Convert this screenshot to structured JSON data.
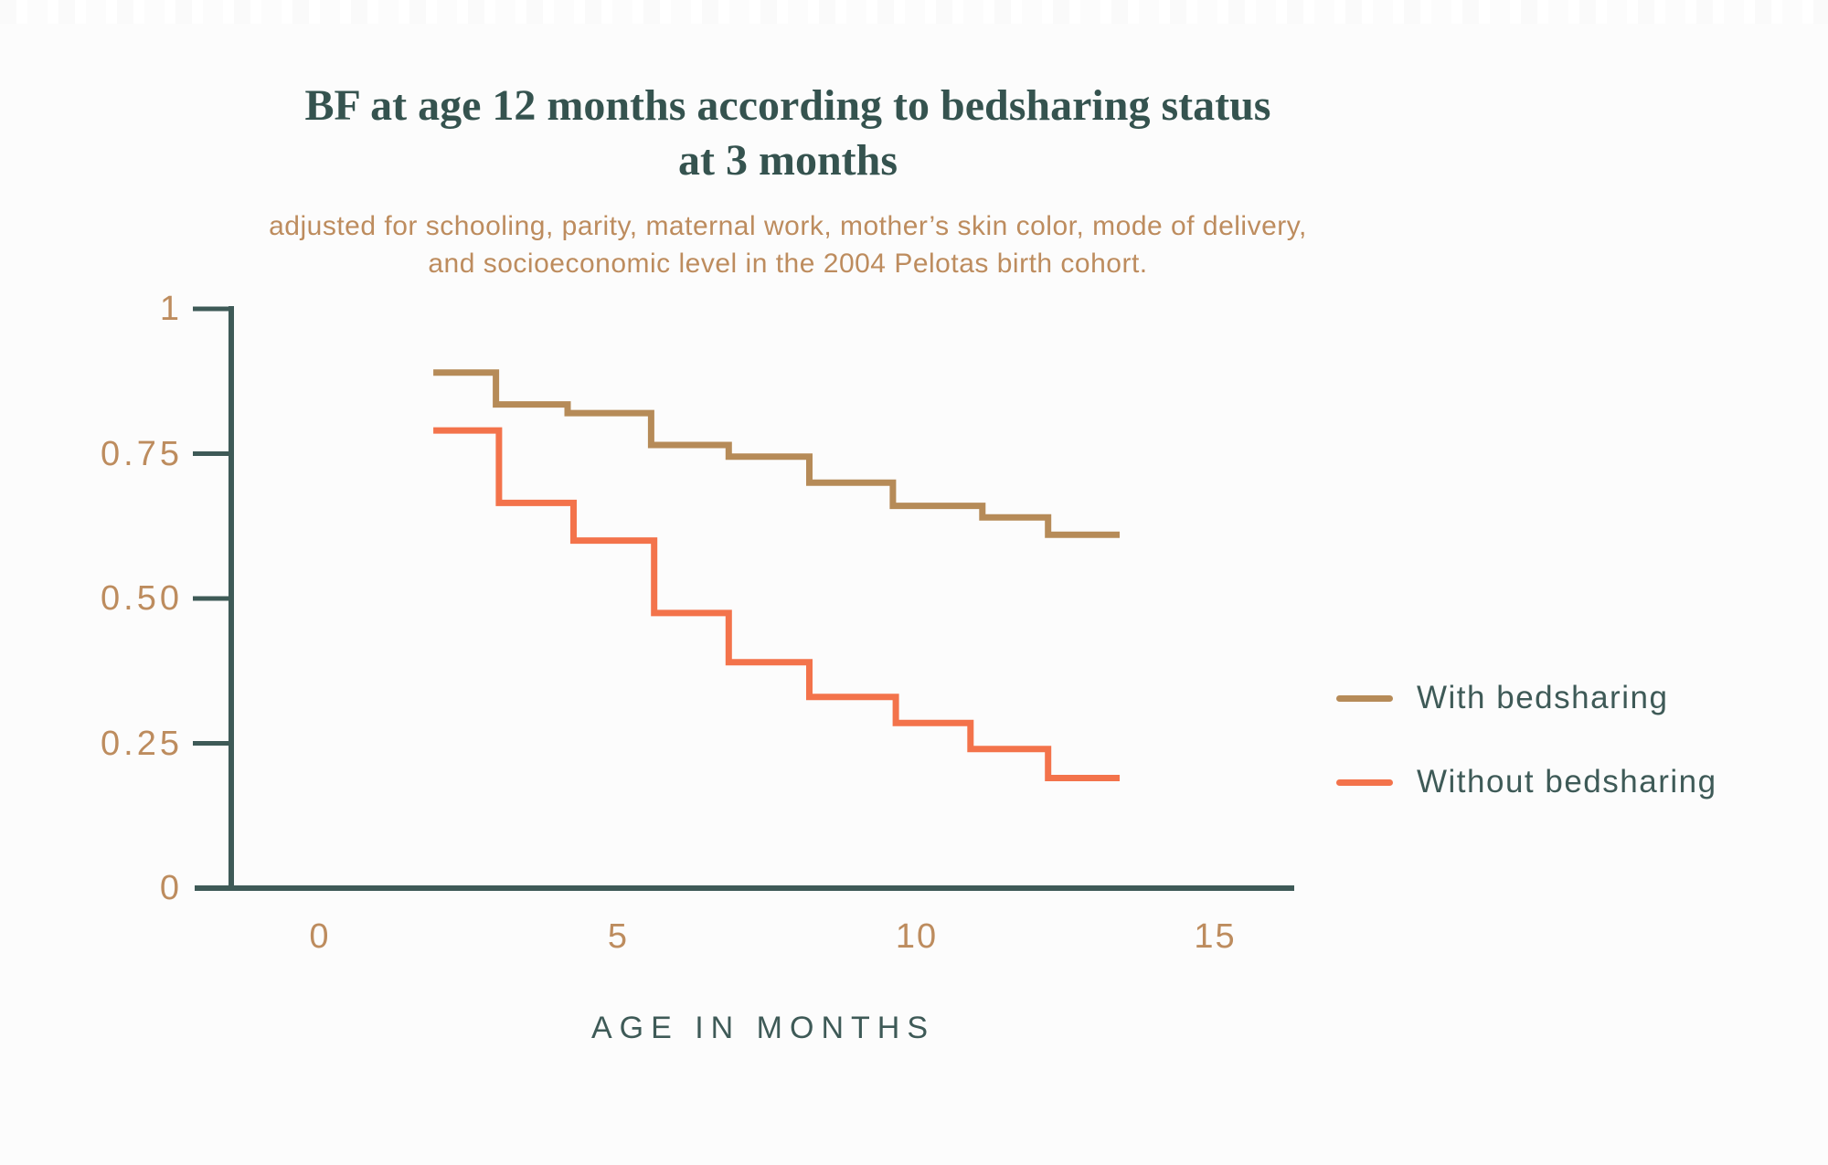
{
  "header": {
    "title": "BF at age 12 months according to bedsharing status at 3 months",
    "subtitle": "adjusted for schooling, parity, maternal work, mother’s skin color, mode of delivery, and socioeconomic level in the 2004 Pelotas birth cohort."
  },
  "colors": {
    "bg": "#fcfcfc",
    "teal": "#3e5a57",
    "teal_dark": "#35534f",
    "tan": "#bd8c5e",
    "axis": "#3e5a57"
  },
  "chart_data": {
    "type": "line",
    "subtype": "step-survival-curve",
    "title": "BF at age 12 months according to bedsharing status at 3 months",
    "subtitle": "adjusted for schooling, parity, maternal work, mother’s skin color, mode of delivery, and socioeconomic level in the 2004 Pelotas birth cohort.",
    "xlabel": "AGE IN MONTHS",
    "ylabel": "",
    "xlim": [
      0,
      15
    ],
    "ylim": [
      0,
      1
    ],
    "grid": false,
    "legend_position": "right",
    "x_ticks": [
      {
        "value": 0,
        "label": "0"
      },
      {
        "value": 5,
        "label": "5"
      },
      {
        "value": 10,
        "label": "10"
      },
      {
        "value": 15,
        "label": "15"
      }
    ],
    "y_ticks": [
      {
        "value": 0,
        "label": "0"
      },
      {
        "value": 0.25,
        "label": "0.25"
      },
      {
        "value": 0.5,
        "label": "0.50"
      },
      {
        "value": 0.75,
        "label": "0.75"
      },
      {
        "value": 1,
        "label": "1"
      }
    ],
    "series": [
      {
        "name": "With bedsharing",
        "color": "#b68b58",
        "x_end": 13.4,
        "points": [
          [
            1.9,
            0.89
          ],
          [
            2.95,
            0.835
          ],
          [
            4.15,
            0.82
          ],
          [
            5.55,
            0.765
          ],
          [
            6.85,
            0.745
          ],
          [
            8.2,
            0.7
          ],
          [
            9.6,
            0.66
          ],
          [
            11.1,
            0.64
          ],
          [
            12.2,
            0.61
          ]
        ]
      },
      {
        "name": "Without bedsharing",
        "color": "#f3734b",
        "x_end": 13.4,
        "points": [
          [
            1.9,
            0.79
          ],
          [
            3.0,
            0.665
          ],
          [
            4.25,
            0.6
          ],
          [
            5.6,
            0.475
          ],
          [
            6.85,
            0.39
          ],
          [
            8.2,
            0.33
          ],
          [
            9.65,
            0.285
          ],
          [
            10.9,
            0.24
          ],
          [
            12.2,
            0.19
          ]
        ]
      }
    ]
  }
}
